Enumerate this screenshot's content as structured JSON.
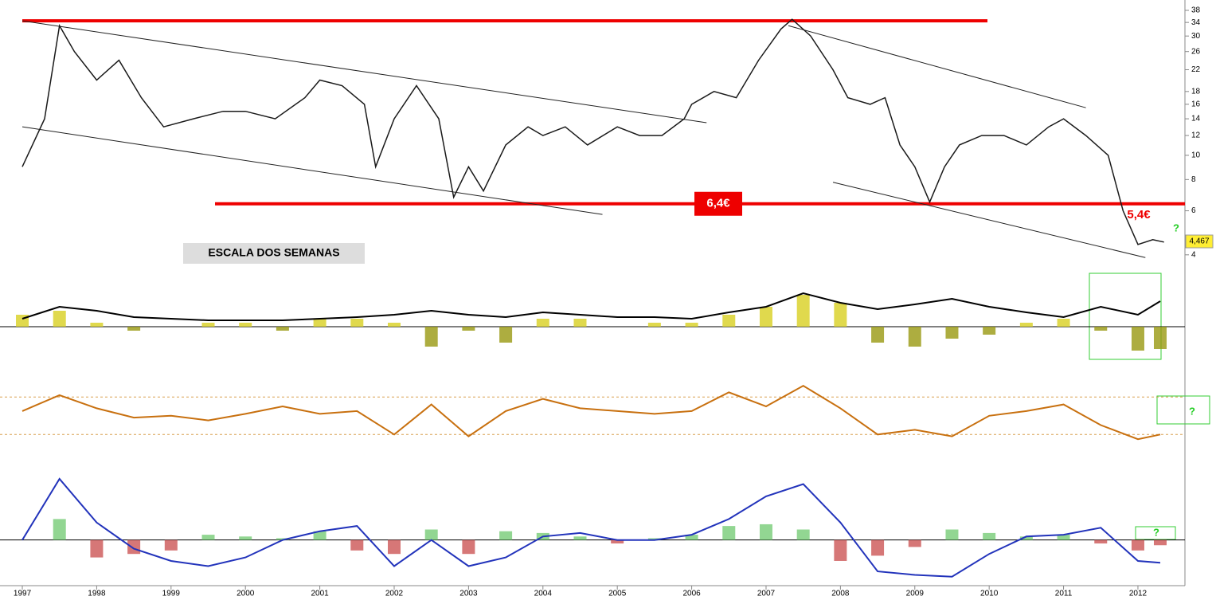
{
  "chart_data": [
    {
      "type": "line",
      "log": true,
      "color": "#1a1a1a",
      "xlim": [
        1996.7,
        2012.6
      ],
      "ylim": [
        3.5,
        40
      ],
      "yticks": [
        4,
        6,
        8,
        10,
        12,
        14,
        16,
        18,
        22,
        26,
        30,
        34,
        38
      ],
      "x": [
        1997.0,
        1997.3,
        1997.5,
        1997.7,
        1998.0,
        1998.3,
        1998.6,
        1998.9,
        1999.3,
        1999.7,
        2000.0,
        2000.4,
        2000.8,
        2001.0,
        2001.3,
        2001.6,
        2001.75,
        2002.0,
        2002.3,
        2002.6,
        2002.8,
        2003.0,
        2003.2,
        2003.5,
        2003.8,
        2004.0,
        2004.3,
        2004.6,
        2005.0,
        2005.3,
        2005.6,
        2005.9,
        2006.0,
        2006.3,
        2006.6,
        2006.9,
        2007.2,
        2007.35,
        2007.6,
        2007.9,
        2008.1,
        2008.4,
        2008.6,
        2008.8,
        2009.0,
        2009.2,
        2009.4,
        2009.6,
        2009.9,
        2010.2,
        2010.5,
        2010.8,
        2011.0,
        2011.3,
        2011.6,
        2011.8,
        2012.0,
        2012.2,
        2012.35
      ],
      "values": [
        9,
        14,
        33,
        26,
        20,
        24,
        17,
        13,
        14,
        15,
        15,
        14,
        17,
        20,
        19,
        16,
        9,
        14,
        19,
        14,
        6.8,
        9,
        7.2,
        11,
        13,
        12,
        13,
        11,
        13,
        12,
        12,
        14,
        16,
        18,
        17,
        24,
        32,
        35,
        30,
        22,
        17,
        16,
        17,
        11,
        9,
        6.5,
        9,
        11,
        12,
        12,
        11,
        13,
        14,
        12,
        10,
        6,
        4.4,
        4.6,
        4.5
      ],
      "hlines": [
        {
          "value": 34.5
        },
        {
          "value": 6.4,
          "label": "6,4€"
        }
      ],
      "trendlines": [
        [
          1997.0,
          34.5,
          2006.2,
          13.5
        ],
        [
          1997.0,
          13,
          2004.8,
          5.8
        ],
        [
          2007.3,
          33,
          2011.3,
          15.5
        ],
        [
          2007.9,
          7.8,
          2012.1,
          3.9
        ]
      ],
      "annotations": [
        "5,4€",
        "ESCALA DOS SEMANAS",
        "4,467",
        "?"
      ]
    },
    {
      "type": "line-histogram",
      "color": "#000000",
      "ylim": [
        -45,
        70
      ],
      "x": [
        1997.0,
        1997.5,
        1998.0,
        1998.5,
        1999.0,
        1999.5,
        2000.0,
        2000.5,
        2001.0,
        2001.5,
        2002.0,
        2002.5,
        2003.0,
        2003.5,
        2004.0,
        2004.5,
        2005.0,
        2005.5,
        2006.0,
        2006.5,
        2007.0,
        2007.5,
        2008.0,
        2008.5,
        2009.0,
        2009.5,
        2010.0,
        2010.5,
        2011.0,
        2011.5,
        2012.0,
        2012.3
      ],
      "values": [
        10,
        25,
        20,
        12,
        10,
        8,
        8,
        8,
        10,
        12,
        15,
        20,
        15,
        12,
        18,
        15,
        12,
        12,
        10,
        18,
        25,
        42,
        30,
        22,
        28,
        35,
        25,
        18,
        12,
        25,
        15,
        32
      ],
      "histogram": [
        15,
        20,
        5,
        -5,
        0,
        5,
        5,
        -5,
        10,
        10,
        5,
        -25,
        -5,
        -20,
        10,
        10,
        0,
        5,
        5,
        15,
        25,
        40,
        30,
        -20,
        -25,
        -15,
        -10,
        5,
        10,
        -5,
        -30,
        -28
      ]
    },
    {
      "type": "line",
      "color": "#c8700f",
      "ylim": [
        9,
        94
      ],
      "refs": [
        30,
        70
      ],
      "x": [
        1997.0,
        1997.5,
        1998.0,
        1998.5,
        1999.0,
        1999.5,
        2000.0,
        2000.5,
        2001.0,
        2001.5,
        2002.0,
        2002.5,
        2003.0,
        2003.5,
        2004.0,
        2004.5,
        2005.0,
        2005.5,
        2006.0,
        2006.5,
        2007.0,
        2007.5,
        2008.0,
        2008.5,
        2009.0,
        2009.5,
        2010.0,
        2010.5,
        2011.0,
        2011.5,
        2012.0,
        2012.3
      ],
      "values": [
        55,
        72,
        58,
        48,
        50,
        45,
        52,
        60,
        52,
        55,
        30,
        62,
        28,
        55,
        68,
        58,
        55,
        52,
        55,
        75,
        60,
        82,
        58,
        30,
        35,
        28,
        50,
        55,
        62,
        40,
        25,
        30
      ],
      "annotations": [
        "?"
      ]
    },
    {
      "type": "line-histogram",
      "color": "#2233bb",
      "ylim": [
        -3.3,
        4
      ],
      "xticks": [
        1997,
        1998,
        1999,
        2000,
        2001,
        2002,
        2003,
        2004,
        2005,
        2006,
        2007,
        2008,
        2009,
        2010,
        2011,
        2012
      ],
      "x": [
        1997.0,
        1997.5,
        1998.0,
        1998.5,
        1999.0,
        1999.5,
        2000.0,
        2000.5,
        2001.0,
        2001.5,
        2002.0,
        2002.5,
        2003.0,
        2003.5,
        2004.0,
        2004.5,
        2005.0,
        2005.5,
        2006.0,
        2006.5,
        2007.0,
        2007.5,
        2008.0,
        2008.5,
        2009.0,
        2009.5,
        2010.0,
        2010.5,
        2011.0,
        2011.5,
        2012.0,
        2012.3
      ],
      "values": [
        0,
        3.5,
        1,
        -0.5,
        -1.2,
        -1.5,
        -1,
        0,
        0.5,
        0.8,
        -1.5,
        0,
        -1.5,
        -1,
        0.2,
        0.4,
        0,
        0,
        0.3,
        1.2,
        2.5,
        3.2,
        1,
        -1.8,
        -2,
        -2.1,
        -0.8,
        0.2,
        0.3,
        0.7,
        -1.2,
        -1.3
      ],
      "histogram": [
        0,
        1.2,
        -1,
        -0.8,
        -0.6,
        0.3,
        0.2,
        0.1,
        0.5,
        -0.6,
        -0.8,
        0.6,
        -0.8,
        0.5,
        0.4,
        0.2,
        -0.2,
        0.1,
        0.3,
        0.8,
        0.9,
        0.6,
        -1.2,
        -0.9,
        -0.4,
        0.6,
        0.4,
        0.2,
        0.3,
        -0.2,
        -0.6,
        -0.3
      ],
      "annotations": [
        "?"
      ]
    }
  ]
}
